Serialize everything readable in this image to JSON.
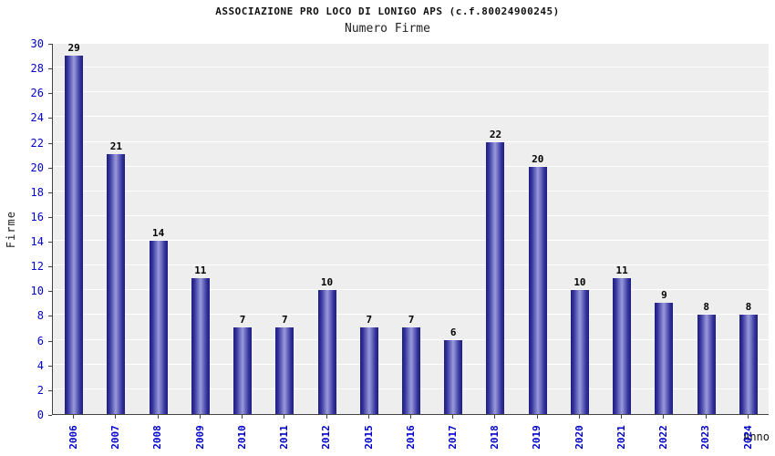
{
  "chart_data": {
    "type": "bar",
    "title": "ASSOCIAZIONE PRO LOCO DI LONIGO APS (c.f.80024900245)",
    "subtitle": "Numero Firme",
    "categories": [
      "2006",
      "2007",
      "2008",
      "2009",
      "2010",
      "2011",
      "2012",
      "2015",
      "2016",
      "2017",
      "2018",
      "2019",
      "2020",
      "2021",
      "2022",
      "2023",
      "2024"
    ],
    "values": [
      29,
      21,
      14,
      11,
      7,
      7,
      10,
      7,
      7,
      6,
      22,
      20,
      10,
      11,
      9,
      8,
      8
    ],
    "xlabel": "Anno",
    "ylabel": "Firme",
    "ylim": [
      0,
      30
    ],
    "ytick_step": 2,
    "grid": true,
    "legend": false,
    "colors": {
      "bar_dark": "#1e1e7e",
      "bar_light": "#9a9ada",
      "tick_label": "#0000cc",
      "value_label": "#000000",
      "plot_bg": "#eeeeee",
      "grid_line": "#ffffff",
      "axis_line": "#444444"
    }
  }
}
